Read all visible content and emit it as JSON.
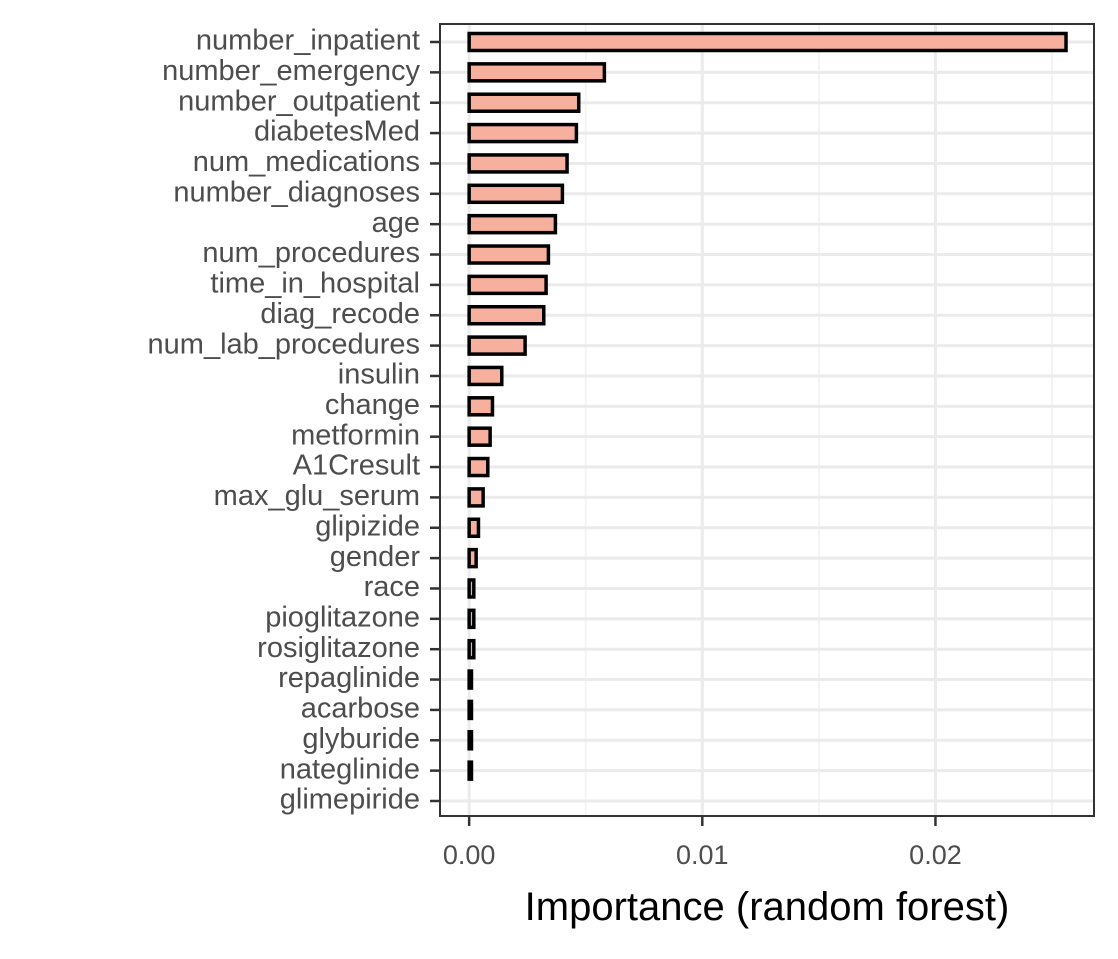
{
  "chart_data": {
    "type": "bar",
    "orientation": "horizontal",
    "title": "",
    "xlabel": "Importance (random forest)",
    "ylabel": "",
    "categories": [
      "number_inpatient",
      "number_emergency",
      "number_outpatient",
      "diabetesMed",
      "num_medications",
      "number_diagnoses",
      "age",
      "num_procedures",
      "time_in_hospital",
      "diag_recode",
      "num_lab_procedures",
      "insulin",
      "change",
      "metformin",
      "A1Cresult",
      "max_glu_serum",
      "glipizide",
      "gender",
      "race",
      "pioglitazone",
      "rosiglitazone",
      "repaglinide",
      "acarbose",
      "glyburide",
      "nateglinide",
      "glimepiride"
    ],
    "values": [
      0.0256,
      0.0058,
      0.0047,
      0.0046,
      0.0042,
      0.004,
      0.0037,
      0.0034,
      0.0033,
      0.0032,
      0.0024,
      0.0014,
      0.001,
      0.0009,
      0.0008,
      0.0006,
      0.0004,
      0.0003,
      0.0002,
      0.0002,
      0.0002,
      0.0001,
      0.0001,
      0.0001,
      0.0001,
      0.0
    ],
    "xlim": [
      -0.00125,
      0.0268
    ],
    "x_ticks": [
      0.0,
      0.01,
      0.02
    ],
    "x_tick_labels": [
      "0.00",
      "0.01",
      "0.02"
    ],
    "grid": true,
    "legend": "none",
    "colors": {
      "bar_fill": "#f8b09e",
      "bar_stroke": "#000000",
      "grid_major": "#ebebeb",
      "grid_minor": "#f4f4f4",
      "panel_border": "#333333",
      "tick_text": "#4d4d4d",
      "title_text": "#000000"
    }
  }
}
